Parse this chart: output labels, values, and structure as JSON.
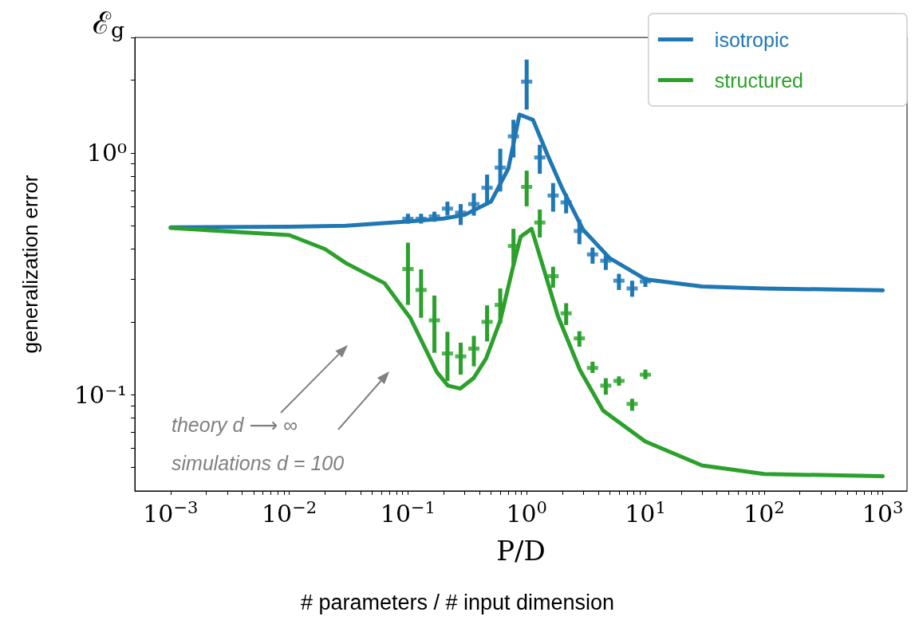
{
  "chart_data": {
    "type": "line",
    "xlabel": "P/D",
    "ylabel": "generalization error",
    "annotations": [
      "ℰ$_{g}$",
      "# parameters / # input dimension",
      "theory d ⟶ ∞",
      "simulations d = 100"
    ],
    "log": "xy",
    "grid": false,
    "legend": "top right",
    "xlim": [
      0.0005,
      1600
    ],
    "ylim": [
      0.04,
      3
    ],
    "xticks": [
      {
        "value": 0.001,
        "label": "10$^{−3}$"
      },
      {
        "value": 0.002,
        "label": null
      },
      {
        "value": 0.003,
        "label": null
      },
      {
        "value": 0.004,
        "label": null
      },
      {
        "value": 0.005,
        "label": null
      },
      {
        "value": 0.006,
        "label": null
      },
      {
        "value": 0.007,
        "label": null
      },
      {
        "value": 0.008,
        "label": null
      },
      {
        "value": 0.009,
        "label": null
      },
      {
        "value": 0.01,
        "label": "10$^{−2}$"
      },
      {
        "value": 0.02,
        "label": null
      },
      {
        "value": 0.03,
        "label": null
      },
      {
        "value": 0.04,
        "label": null
      },
      {
        "value": 0.05,
        "label": null
      },
      {
        "value": 0.06,
        "label": null
      },
      {
        "value": 0.07,
        "label": null
      },
      {
        "value": 0.08,
        "label": null
      },
      {
        "value": 0.09,
        "label": null
      },
      {
        "value": 0.1,
        "label": "10$^{−1}$"
      },
      {
        "value": 0.2,
        "label": null
      },
      {
        "value": 0.3,
        "label": null
      },
      {
        "value": 0.4,
        "label": null
      },
      {
        "value": 0.5,
        "label": null
      },
      {
        "value": 0.6,
        "label": null
      },
      {
        "value": 0.7,
        "label": null
      },
      {
        "value": 0.8,
        "label": null
      },
      {
        "value": 0.9,
        "label": null
      },
      {
        "value": 1,
        "label": "10$^{0}$"
      },
      {
        "value": 2,
        "label": null
      },
      {
        "value": 3,
        "label": null
      },
      {
        "value": 4,
        "label": null
      },
      {
        "value": 5,
        "label": null
      },
      {
        "value": 6,
        "label": null
      },
      {
        "value": 7,
        "label": null
      },
      {
        "value": 8,
        "label": null
      },
      {
        "value": 9,
        "label": null
      },
      {
        "value": 10,
        "label": "10$^{1}$"
      },
      {
        "value": 20,
        "label": null
      },
      {
        "value": 30,
        "label": null
      },
      {
        "value": 40,
        "label": null
      },
      {
        "value": 50,
        "label": null
      },
      {
        "value": 60,
        "label": null
      },
      {
        "value": 70,
        "label": null
      },
      {
        "value": 80,
        "label": null
      },
      {
        "value": 90,
        "label": null
      },
      {
        "value": 100,
        "label": "10$^{2}$"
      },
      {
        "value": 200,
        "label": null
      },
      {
        "value": 300,
        "label": null
      },
      {
        "value": 400,
        "label": null
      },
      {
        "value": 500,
        "label": null
      },
      {
        "value": 600,
        "label": null
      },
      {
        "value": 700,
        "label": null
      },
      {
        "value": 800,
        "label": null
      },
      {
        "value": 900,
        "label": null
      },
      {
        "value": 1000,
        "label": "10$^{3}$"
      }
    ],
    "yticks": [
      {
        "value": 0.05,
        "label": null
      },
      {
        "value": 0.06,
        "label": null
      },
      {
        "value": 0.07,
        "label": null
      },
      {
        "value": 0.08,
        "label": null
      },
      {
        "value": 0.09,
        "label": null
      },
      {
        "value": 0.1,
        "label": "10⁻¹"
      },
      {
        "value": 0.2,
        "label": null
      },
      {
        "value": 0.3,
        "label": null
      },
      {
        "value": 0.4,
        "label": null
      },
      {
        "value": 0.5,
        "label": null
      },
      {
        "value": 0.6,
        "label": null
      },
      {
        "value": 0.7,
        "label": null
      },
      {
        "value": 0.8,
        "label": null
      },
      {
        "value": 0.9,
        "label": null
      },
      {
        "value": 1,
        "label": "10⁰"
      },
      {
        "value": 2,
        "label": null
      },
      {
        "value": 3,
        "label": null
      }
    ],
    "series": [
      {
        "name": "isotropic",
        "color": "#1f77b4",
        "x": [
          0.001,
          0.01,
          0.03,
          0.1,
          0.2,
          0.3,
          0.5,
          0.7,
          0.87,
          1.13,
          1.5,
          2,
          3,
          5,
          10,
          30,
          100,
          1000
        ],
        "values": [
          0.492,
          0.495,
          0.5,
          0.52,
          0.535,
          0.554,
          0.628,
          0.86,
          1.44,
          1.37,
          0.98,
          0.71,
          0.48,
          0.367,
          0.3,
          0.28,
          0.275,
          0.27
        ]
      },
      {
        "name": "structured",
        "color": "#2ca02c",
        "x": [
          0.001,
          0.01,
          0.02,
          0.03,
          0.0635,
          0.105,
          0.175,
          0.217,
          0.276,
          0.357,
          0.455,
          0.6,
          0.77,
          0.89,
          1.1,
          1.48,
          1.83,
          2.8,
          4.4,
          10,
          30,
          100,
          1000
        ],
        "values": [
          0.489,
          0.457,
          0.4,
          0.35,
          0.289,
          0.207,
          0.124,
          0.109,
          0.106,
          0.117,
          0.141,
          0.203,
          0.34,
          0.45,
          0.485,
          0.3,
          0.212,
          0.127,
          0.086,
          0.064,
          0.051,
          0.047,
          0.046
        ]
      },
      {
        "type": "scatter",
        "color": "#1f77b4",
        "x": [
          0.1,
          0.129,
          0.167,
          0.215,
          0.278,
          0.359,
          0.464,
          0.599,
          0.774,
          1,
          1.29,
          1.67,
          2.15,
          2.78,
          3.59,
          4.64,
          5.99,
          7.74,
          10
        ],
        "values": [
          0.534,
          0.534,
          0.546,
          0.588,
          0.566,
          0.614,
          0.717,
          0.869,
          1.17,
          1.97,
          0.957,
          0.666,
          0.624,
          0.475,
          0.38,
          0.358,
          0.296,
          0.275,
          0.294
        ],
        "errors": [
          [
            0.51,
            0.56
          ],
          [
            0.51,
            0.56
          ],
          [
            0.519,
            0.571
          ],
          [
            0.55,
            0.628
          ],
          [
            0.503,
            0.614
          ],
          [
            0.55,
            0.681
          ],
          [
            0.619,
            0.813
          ],
          [
            0.692,
            1.04
          ],
          [
            0.957,
            1.37
          ],
          [
            1.51,
            2.43
          ],
          [
            0.819,
            1.08
          ],
          [
            0.571,
            0.75
          ],
          [
            0.562,
            0.676
          ],
          [
            0.419,
            0.53
          ],
          [
            0.348,
            0.406
          ],
          [
            0.328,
            0.383
          ],
          [
            0.271,
            0.316
          ],
          [
            0.254,
            0.296
          ],
          [
            0.279,
            0.307
          ]
        ]
      },
      {
        "type": "scatter",
        "color": "#2ca02c",
        "x": [
          0.1,
          0.129,
          0.167,
          0.215,
          0.278,
          0.359,
          0.464,
          0.599,
          0.774,
          1,
          1.29,
          1.67,
          2.15,
          2.78,
          3.59,
          4.64,
          5.99,
          7.74,
          10
        ],
        "values": [
          0.331,
          0.271,
          0.203,
          0.148,
          0.144,
          0.155,
          0.2,
          0.235,
          0.412,
          0.723,
          0.515,
          0.309,
          0.217,
          0.171,
          0.129,
          0.109,
          0.114,
          0.0916,
          0.121
        ],
        "errors": [
          [
            0.235,
            0.425
          ],
          [
            0.208,
            0.33
          ],
          [
            0.149,
            0.257
          ],
          [
            0.114,
            0.182
          ],
          [
            0.121,
            0.164
          ],
          [
            0.131,
            0.175
          ],
          [
            0.166,
            0.234
          ],
          [
            0.197,
            0.275
          ],
          [
            0.34,
            0.485
          ],
          [
            0.601,
            0.844
          ],
          [
            0.447,
            0.583
          ],
          [
            0.277,
            0.338
          ],
          [
            0.194,
            0.239
          ],
          [
            0.158,
            0.183
          ],
          [
            0.123,
            0.137
          ],
          [
            0.1,
            0.117
          ],
          [
            0.109,
            0.119
          ],
          [
            0.0858,
            0.0962
          ],
          [
            0.116,
            0.127
          ]
        ]
      }
    ]
  }
}
